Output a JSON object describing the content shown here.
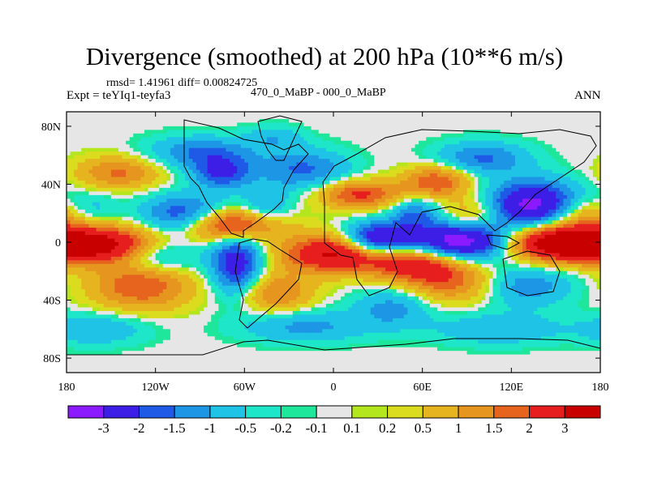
{
  "chart_data": {
    "type": "heatmap",
    "title": "Divergence (smoothed) at 200 hPa (10**6 m/s)",
    "stats": "rmsd= 1.41961 diff= 0.00824725",
    "experiment": "Expt = teYIq1-teyfa3",
    "subtitle": "470_0_MaBP - 000_0_MaBP",
    "season": "ANN",
    "x_range": [
      -180,
      180
    ],
    "y_range": [
      -90,
      90
    ],
    "x_ticks": [
      {
        "value": -180,
        "label": "180"
      },
      {
        "value": -120,
        "label": "120W"
      },
      {
        "value": -60,
        "label": "60W"
      },
      {
        "value": 0,
        "label": "0"
      },
      {
        "value": 60,
        "label": "60E"
      },
      {
        "value": 120,
        "label": "120E"
      },
      {
        "value": 180,
        "label": "180"
      }
    ],
    "y_ticks": [
      {
        "value": 80,
        "label": "80N"
      },
      {
        "value": 40,
        "label": "40N"
      },
      {
        "value": 0,
        "label": "0"
      },
      {
        "value": -40,
        "label": "40S"
      },
      {
        "value": -80,
        "label": "80S"
      }
    ],
    "contour_levels": [
      -3,
      -2,
      -1.5,
      -1,
      -0.5,
      -0.2,
      -0.1,
      0.1,
      0.2,
      0.5,
      1,
      1.5,
      2,
      3
    ],
    "colorbar_labels": [
      "-3",
      "-2",
      "-1.5",
      "-1",
      "-0.5",
      "-0.2",
      "-0.1",
      "0.1",
      "0.2",
      "0.5",
      "1",
      "1.5",
      "2",
      "3"
    ],
    "colors": [
      "#8c1aff",
      "#3c1ee6",
      "#1e5ae6",
      "#1e96e6",
      "#1ec3e6",
      "#1ee6c8",
      "#1ee69b",
      "#e6e6e6",
      "#b4e61e",
      "#dcdc1e",
      "#e6b41e",
      "#e6961e",
      "#e6641e",
      "#e61e1e",
      "#c80000"
    ],
    "features": [
      {
        "lon": 150,
        "lat": 0,
        "amp": 4.2,
        "sx": 25,
        "sy": 9
      },
      {
        "lon": -158,
        "lat": -2,
        "amp": 3.5,
        "sx": 28,
        "sy": 9
      },
      {
        "lon": 175,
        "lat": 20,
        "amp": 1.6,
        "sx": 22,
        "sy": 8
      },
      {
        "lon": -70,
        "lat": 12,
        "amp": 3.2,
        "sx": 24,
        "sy": 8
      },
      {
        "lon": -45,
        "lat": 22,
        "amp": -1.2,
        "sx": 12,
        "sy": 10
      },
      {
        "lon": 0,
        "lat": -8,
        "amp": 3.2,
        "sx": 24,
        "sy": 9
      },
      {
        "lon": 55,
        "lat": -14,
        "amp": 2.6,
        "sx": 22,
        "sy": 9
      },
      {
        "lon": 18,
        "lat": 33,
        "amp": 2.2,
        "sx": 20,
        "sy": 7
      },
      {
        "lon": 80,
        "lat": -28,
        "amp": 1.6,
        "sx": 22,
        "sy": 10
      },
      {
        "lon": -130,
        "lat": -30,
        "amp": 2.0,
        "sx": 24,
        "sy": 12
      },
      {
        "lon": -40,
        "lat": -35,
        "amp": 1.6,
        "sx": 18,
        "sy": 10
      },
      {
        "lon": 70,
        "lat": 42,
        "amp": 2.0,
        "sx": 16,
        "sy": 8
      },
      {
        "lon": -145,
        "lat": 48,
        "amp": 1.6,
        "sx": 20,
        "sy": 8
      },
      {
        "lon": 95,
        "lat": 20,
        "amp": 1.2,
        "sx": 14,
        "sy": 8
      },
      {
        "lon": 85,
        "lat": 0,
        "amp": -3.8,
        "sx": 25,
        "sy": 9
      },
      {
        "lon": 135,
        "lat": 25,
        "amp": -3.5,
        "sx": 22,
        "sy": 12
      },
      {
        "lon": 30,
        "lat": 2,
        "amp": -3.2,
        "sx": 16,
        "sy": 8
      },
      {
        "lon": 55,
        "lat": 20,
        "amp": -1.5,
        "sx": 12,
        "sy": 8
      },
      {
        "lon": -100,
        "lat": 18,
        "amp": -2.4,
        "sx": 20,
        "sy": 10
      },
      {
        "lon": -90,
        "lat": 62,
        "amp": -1.5,
        "sx": 25,
        "sy": 8
      },
      {
        "lon": -75,
        "lat": 48,
        "amp": -2.0,
        "sx": 14,
        "sy": 8
      },
      {
        "lon": -65,
        "lat": -15,
        "amp": -2.6,
        "sx": 12,
        "sy": 16
      },
      {
        "lon": -20,
        "lat": 50,
        "amp": -1.6,
        "sx": 22,
        "sy": 10
      },
      {
        "lon": -165,
        "lat": 22,
        "amp": -1.4,
        "sx": 14,
        "sy": 8
      },
      {
        "lon": 100,
        "lat": 58,
        "amp": -1.6,
        "sx": 22,
        "sy": 8
      },
      {
        "lon": 130,
        "lat": -30,
        "amp": -1.4,
        "sx": 22,
        "sy": 10
      },
      {
        "lon": -120,
        "lat": -10,
        "amp": -1.5,
        "sx": 20,
        "sy": 8
      },
      {
        "lon": 40,
        "lat": -45,
        "amp": -1.2,
        "sx": 18,
        "sy": 10
      },
      {
        "lon": -20,
        "lat": -58,
        "amp": -1.2,
        "sx": 30,
        "sy": 8
      },
      {
        "lon": 110,
        "lat": -60,
        "amp": -1.0,
        "sx": 30,
        "sy": 8
      },
      {
        "lon": -160,
        "lat": -60,
        "amp": -1.0,
        "sx": 25,
        "sy": 8
      },
      {
        "lon": -40,
        "lat": 72,
        "amp": -0.8,
        "sx": 14,
        "sy": 6
      }
    ]
  }
}
